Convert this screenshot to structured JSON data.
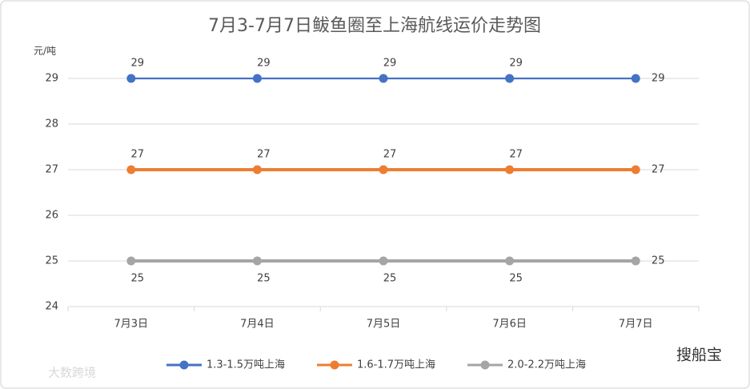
{
  "chart_data": {
    "type": "line",
    "title": "7月3-7月7日鲅鱼圈至上海航线运价走势图",
    "y_axis_label": "元/吨",
    "categories": [
      "7月3日",
      "7月4日",
      "7月5日",
      "7月6日",
      "7月7日"
    ],
    "series": [
      {
        "name": "1.3-1.5万吨上海",
        "color": "#4472c4",
        "values": [
          29,
          29,
          29,
          29,
          29
        ]
      },
      {
        "name": "1.6-1.7万吨上海",
        "color": "#ed7d31",
        "values": [
          27,
          27,
          27,
          27,
          27
        ]
      },
      {
        "name": "2.0-2.2万吨上海",
        "color": "#a5a5a5",
        "values": [
          25,
          25,
          25,
          25,
          25
        ]
      }
    ],
    "ylim": [
      24,
      29
    ],
    "yticks": [
      24,
      25,
      26,
      27,
      28,
      29
    ],
    "grid": true,
    "legend": "bottom",
    "watermarks": [
      "大数跨境",
      "搜船宝"
    ]
  }
}
